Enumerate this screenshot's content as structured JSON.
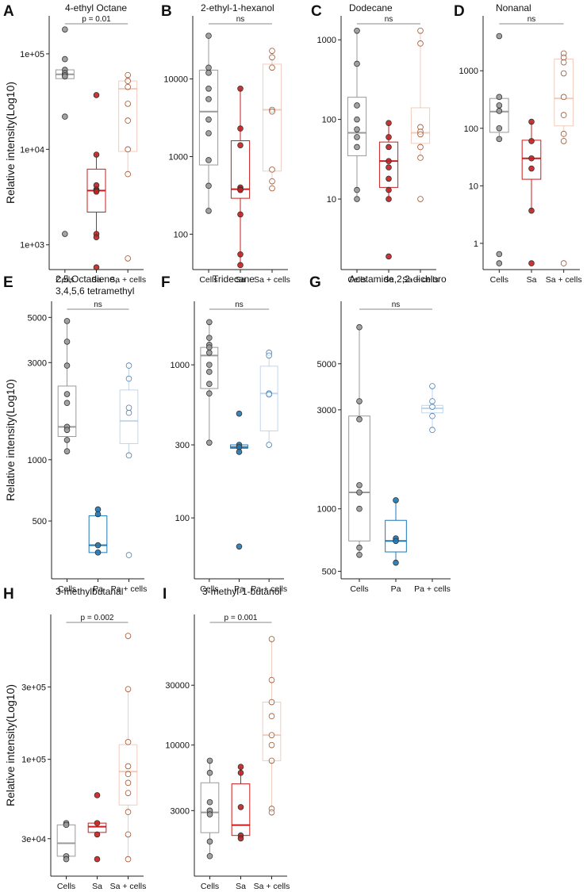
{
  "figure": {
    "ylabel": "Relative intensity(Log10)",
    "colors": {
      "cells": "#999999",
      "sa": "#c81e1e",
      "sa_cells": "#e8a387",
      "pa": "#1f78b4",
      "pa_cells": "#8fb6dc",
      "sig_line": "#888888",
      "axis": "#222222"
    }
  },
  "chart_data": [
    {
      "id": "A",
      "type": "box",
      "title": "4-ethyl Octane",
      "ylabel": "Relative intensity(Log10)",
      "scale": "log",
      "ylim": [
        550,
        250000
      ],
      "yticks": [
        1000,
        10000,
        100000
      ],
      "yticklabels": [
        "1e+03",
        "1e+04",
        "1e+05"
      ],
      "groups": [
        {
          "name": "Cells",
          "color": "cells",
          "points": [
            180000,
            88000,
            68000,
            63000,
            60000,
            58000,
            22000,
            1300
          ],
          "box": {
            "q1": 55000,
            "median": 61000,
            "q3": 68000,
            "lo": 55000,
            "hi": 68000
          }
        },
        {
          "name": "Sa",
          "color": "sa",
          "points": [
            37000,
            8800,
            4200,
            3800,
            3700,
            3600,
            1300,
            1200,
            580
          ],
          "box": {
            "q1": 2200,
            "median": 3700,
            "q3": 6200,
            "lo": 1300,
            "hi": 9000
          }
        },
        {
          "name": "Sa + cells",
          "color": "sa_cells",
          "points": [
            60000,
            52000,
            45000,
            30000,
            20000,
            10000,
            5500,
            720
          ],
          "box": {
            "q1": 9500,
            "median": 43000,
            "q3": 52000,
            "lo": 5500,
            "hi": 60000
          }
        }
      ],
      "comparison": {
        "label": "p = 0.01",
        "from": "Cells",
        "to": "Sa + cells"
      }
    },
    {
      "id": "B",
      "type": "box",
      "title": "2-ethyl-1-hexanol",
      "ylabel": "",
      "scale": "log",
      "ylim": [
        35,
        65000
      ],
      "yticks": [
        100,
        1000,
        10000
      ],
      "yticklabels": [
        "100",
        "1000",
        "10000"
      ],
      "groups": [
        {
          "name": "Cells",
          "color": "cells",
          "points": [
            36000,
            14000,
            12000,
            7500,
            5500,
            3000,
            2000,
            900,
            420,
            200
          ],
          "box": {
            "q1": 780,
            "median": 3800,
            "q3": 13000,
            "lo": 200,
            "hi": 36000
          }
        },
        {
          "name": "Sa",
          "color": "sa",
          "points": [
            7500,
            2300,
            1400,
            400,
            380,
            370,
            180,
            55,
            40
          ],
          "box": {
            "q1": 290,
            "median": 380,
            "q3": 1600,
            "lo": 40,
            "hi": 7500
          }
        },
        {
          "name": "Sa + cells",
          "color": "sa_cells",
          "points": [
            23000,
            19000,
            14000,
            4000,
            3800,
            680,
            480,
            390
          ],
          "box": {
            "q1": 650,
            "median": 4000,
            "q3": 15500,
            "lo": 390,
            "hi": 23000
          }
        }
      ],
      "comparison": {
        "label": "ns",
        "from": "Cells",
        "to": "Sa + cells"
      }
    },
    {
      "id": "C",
      "type": "box",
      "title": "Dodecane",
      "ylabel": "",
      "scale": "log",
      "ylim": [
        1.3,
        2000
      ],
      "yticks": [
        10,
        100,
        1000
      ],
      "yticklabels": [
        "10",
        "100",
        "1000"
      ],
      "groups": [
        {
          "name": "Cells",
          "color": "cells",
          "points": [
            1300,
            500,
            150,
            100,
            75,
            60,
            45,
            13,
            10
          ],
          "box": {
            "q1": 35,
            "median": 68,
            "q3": 190,
            "lo": 10,
            "hi": 1300
          }
        },
        {
          "name": "Sa",
          "color": "sa",
          "points": [
            90,
            60,
            45,
            30,
            25,
            18,
            13,
            10,
            1.9
          ],
          "box": {
            "q1": 14,
            "median": 30,
            "q3": 52,
            "lo": 10,
            "hi": 90
          }
        },
        {
          "name": "Sa + cells",
          "color": "sa_cells",
          "points": [
            1300,
            900,
            80,
            70,
            65,
            45,
            33,
            10
          ],
          "box": {
            "q1": 50,
            "median": 68,
            "q3": 140,
            "lo": 33,
            "hi": 1300
          }
        }
      ],
      "comparison": {
        "label": "ns",
        "from": "Cells",
        "to": "Sa + cells"
      }
    },
    {
      "id": "D",
      "type": "box",
      "title": "Nonanal",
      "ylabel": "",
      "scale": "log",
      "ylim": [
        0.35,
        9000
      ],
      "yticks": [
        1,
        10,
        100,
        1000
      ],
      "yticklabels": [
        "1",
        "10",
        "100",
        "1000"
      ],
      "groups": [
        {
          "name": "Cells",
          "color": "cells",
          "points": [
            4000,
            350,
            250,
            200,
            100,
            65,
            0.65,
            0.45
          ],
          "box": {
            "q1": 85,
            "median": 195,
            "q3": 330,
            "lo": 65,
            "hi": 330
          }
        },
        {
          "name": "Sa",
          "color": "sa",
          "points": [
            130,
            60,
            30,
            20,
            3.7,
            0.45
          ],
          "box": {
            "q1": 13,
            "median": 30,
            "q3": 62,
            "lo": 3.7,
            "hi": 130
          }
        },
        {
          "name": "Sa + cells",
          "color": "sa_cells",
          "points": [
            2000,
            1700,
            1400,
            900,
            350,
            170,
            80,
            60,
            0.45
          ],
          "box": {
            "q1": 110,
            "median": 330,
            "q3": 1600,
            "lo": 60,
            "hi": 2000
          }
        }
      ],
      "comparison": {
        "label": "ns",
        "from": "Cells",
        "to": "Sa + cells"
      }
    },
    {
      "id": "E",
      "type": "box",
      "title": "2,5,Octadiene,",
      "subtitle": "3,4,5,6 tetramethyl",
      "ylabel": "Relative intensity(Log10)",
      "scale": "log",
      "ylim": [
        260,
        6000
      ],
      "yticks": [
        500,
        1000,
        3000,
        5000
      ],
      "yticklabels": [
        "500",
        "1000",
        "3000",
        "5000"
      ],
      "groups": [
        {
          "name": "Cells",
          "color": "cells",
          "points": [
            4800,
            3800,
            2900,
            2100,
            1900,
            1450,
            1400,
            1250,
            1100
          ],
          "box": {
            "q1": 1300,
            "median": 1450,
            "q3": 2300,
            "lo": 1100,
            "hi": 4800
          }
        },
        {
          "name": "Pa",
          "color": "pa",
          "points": [
            570,
            540,
            380,
            350
          ],
          "box": {
            "q1": 350,
            "median": 380,
            "q3": 530,
            "lo": 350,
            "hi": 570
          }
        },
        {
          "name": "Pa + cells",
          "color": "pa_cells",
          "points": [
            2900,
            2500,
            1800,
            1700,
            1050,
            340
          ],
          "box": {
            "q1": 1200,
            "median": 1550,
            "q3": 2200,
            "lo": 1050,
            "hi": 2900
          }
        }
      ],
      "comparison": {
        "label": "ns",
        "from": "Cells",
        "to": "Pa + cells"
      }
    },
    {
      "id": "F",
      "type": "box",
      "title": "Tridecane",
      "ylabel": "",
      "scale": "log",
      "ylim": [
        40,
        2600
      ],
      "yticks": [
        100,
        300,
        1000
      ],
      "yticklabels": [
        "100",
        "300",
        "1000"
      ],
      "groups": [
        {
          "name": "Cells",
          "color": "cells",
          "points": [
            1900,
            1500,
            1350,
            1300,
            1200,
            1000,
            900,
            750,
            650,
            310
          ],
          "box": {
            "q1": 700,
            "median": 1150,
            "q3": 1300,
            "lo": 310,
            "hi": 1900
          }
        },
        {
          "name": "Pa",
          "color": "pa",
          "points": [
            480,
            300,
            290,
            270,
            65
          ],
          "box": {
            "q1": 285,
            "median": 290,
            "q3": 300,
            "lo": 270,
            "hi": 300
          }
        },
        {
          "name": "Pa + cells",
          "color": "pa_cells",
          "points": [
            1200,
            1150,
            650,
            640,
            300
          ],
          "box": {
            "q1": 370,
            "median": 650,
            "q3": 980,
            "lo": 300,
            "hi": 1200
          }
        }
      ],
      "comparison": {
        "label": "ns",
        "from": "Cells",
        "to": "Pa + cells"
      }
    },
    {
      "id": "G",
      "type": "box",
      "title": "Acetamide,2,2-dichloro",
      "ylabel": "",
      "scale": "log",
      "ylim": [
        460,
        10000
      ],
      "yticks": [
        500,
        1000,
        3000,
        5000
      ],
      "yticklabels": [
        "500",
        "1000",
        "3000",
        "5000"
      ],
      "groups": [
        {
          "name": "Cells",
          "color": "cells",
          "points": [
            7500,
            3300,
            2700,
            1300,
            1200,
            1000,
            650,
            600
          ],
          "box": {
            "q1": 700,
            "median": 1200,
            "q3": 2800,
            "lo": 600,
            "hi": 7500
          }
        },
        {
          "name": "Pa",
          "color": "pa",
          "points": [
            1100,
            720,
            700,
            550
          ],
          "box": {
            "q1": 620,
            "median": 700,
            "q3": 880,
            "lo": 550,
            "hi": 1100
          }
        },
        {
          "name": "Pa + cells",
          "color": "pa_cells",
          "points": [
            3900,
            3300,
            3100,
            2800,
            2400
          ],
          "box": {
            "q1": 2900,
            "median": 3050,
            "q3": 3150,
            "lo": 2400,
            "hi": 3900
          }
        }
      ],
      "comparison": {
        "label": "ns",
        "from": "Cells",
        "to": "Pa + cells"
      }
    },
    {
      "id": "H",
      "type": "box",
      "title": "3-methylbutanal",
      "ylabel": "Relative intensity(Log10)",
      "scale": "log",
      "ylim": [
        17000,
        900000
      ],
      "yticks": [
        30000,
        100000,
        300000
      ],
      "yticklabels": [
        "3e+04",
        "1e+05",
        "3e+05"
      ],
      "groups": [
        {
          "name": "Cells",
          "color": "cells",
          "points": [
            38000,
            37000,
            23000,
            22000
          ],
          "box": {
            "q1": 23000,
            "median": 28000,
            "q3": 37000,
            "lo": 23000,
            "hi": 37000
          }
        },
        {
          "name": "Sa",
          "color": "sa",
          "points": [
            58000,
            38000,
            32000,
            22000
          ],
          "box": {
            "q1": 33000,
            "median": 36000,
            "q3": 38000,
            "lo": 33000,
            "hi": 38000
          }
        },
        {
          "name": "Sa + cells",
          "color": "sa_cells",
          "points": [
            650000,
            290000,
            130000,
            90000,
            80000,
            70000,
            60000,
            45000,
            32000,
            22000
          ],
          "box": {
            "q1": 50000,
            "median": 83000,
            "q3": 125000,
            "lo": 22000,
            "hi": 290000
          }
        }
      ],
      "comparison": {
        "label": "p = 0.002",
        "from": "Cells",
        "to": "Sa + cells"
      }
    },
    {
      "id": "I",
      "type": "box",
      "title": "3-methyl-1-butanol",
      "ylabel": "",
      "scale": "log",
      "ylim": [
        900,
        110000
      ],
      "yticks": [
        3000,
        10000,
        30000
      ],
      "yticklabels": [
        "3000",
        "10000",
        "30000"
      ],
      "groups": [
        {
          "name": "Cells",
          "color": "cells",
          "points": [
            7500,
            6000,
            3500,
            3000,
            2800,
            1700,
            1300
          ],
          "box": {
            "q1": 2000,
            "median": 2900,
            "q3": 5000,
            "lo": 1300,
            "hi": 7500
          }
        },
        {
          "name": "Sa",
          "color": "sa",
          "points": [
            6700,
            6000,
            3200,
            1900,
            1800
          ],
          "box": {
            "q1": 1900,
            "median": 2300,
            "q3": 4900,
            "lo": 1800,
            "hi": 6700
          }
        },
        {
          "name": "Sa + cells",
          "color": "sa_cells",
          "points": [
            70000,
            33000,
            22000,
            17000,
            12000,
            10000,
            7500,
            3100,
            2900
          ],
          "box": {
            "q1": 7500,
            "median": 12000,
            "q3": 22000,
            "lo": 2900,
            "hi": 70000
          }
        }
      ],
      "comparison": {
        "label": "p = 0.001",
        "from": "Cells",
        "to": "Sa + cells"
      }
    }
  ]
}
